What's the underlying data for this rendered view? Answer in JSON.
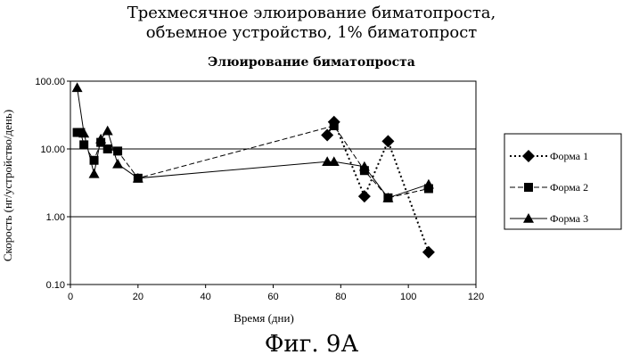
{
  "figure": {
    "title_lines": [
      "Трехмесячное элюирование биматопроста,",
      "объемное устройство, 1% биматопрост"
    ],
    "caption": "Фиг. 9А"
  },
  "chart_data": {
    "type": "line",
    "title": "Элюирование биматопроста",
    "xlabel": "Время (дни)",
    "ylabel": "Скорость (нг/устройство/день)",
    "xlim": [
      0,
      120
    ],
    "ylim": [
      0.1,
      100
    ],
    "yscale": "log",
    "x_ticks": [
      0,
      20,
      40,
      60,
      80,
      100,
      120
    ],
    "y_ticks": [
      100,
      10,
      1,
      0.1
    ],
    "y_tick_labels": [
      "100.00",
      "10.00",
      "1.00",
      "0.10"
    ],
    "grid": "horizontal",
    "legend_position": "right",
    "series": [
      {
        "name": "Форма 1",
        "marker": "diamond",
        "line": "dotted",
        "points": [
          [
            76,
            16
          ],
          [
            78,
            25
          ],
          [
            87,
            2.0
          ],
          [
            94,
            13
          ],
          [
            106,
            0.3
          ]
        ]
      },
      {
        "name": "Форма 2",
        "marker": "square",
        "line": "dashed",
        "points": [
          [
            2,
            17.5
          ],
          [
            3,
            17.5
          ],
          [
            4,
            11.5
          ],
          [
            7,
            6.8
          ],
          [
            9,
            12.5
          ],
          [
            11,
            10
          ],
          [
            14,
            9.3
          ],
          [
            20,
            3.7
          ],
          [
            78,
            22
          ],
          [
            87,
            4.8
          ],
          [
            94,
            1.9
          ],
          [
            106,
            2.6
          ]
        ]
      },
      {
        "name": "Форма 3",
        "marker": "triangle",
        "line": "solid",
        "points": [
          [
            2,
            80
          ],
          [
            4,
            17
          ],
          [
            7,
            4.3
          ],
          [
            9,
            14
          ],
          [
            11,
            18.5
          ],
          [
            14,
            6
          ],
          [
            20,
            3.7
          ],
          [
            76,
            6.5
          ],
          [
            78,
            6.5
          ],
          [
            87,
            5.5
          ],
          [
            94,
            1.9
          ],
          [
            106,
            3.0
          ]
        ]
      }
    ]
  }
}
